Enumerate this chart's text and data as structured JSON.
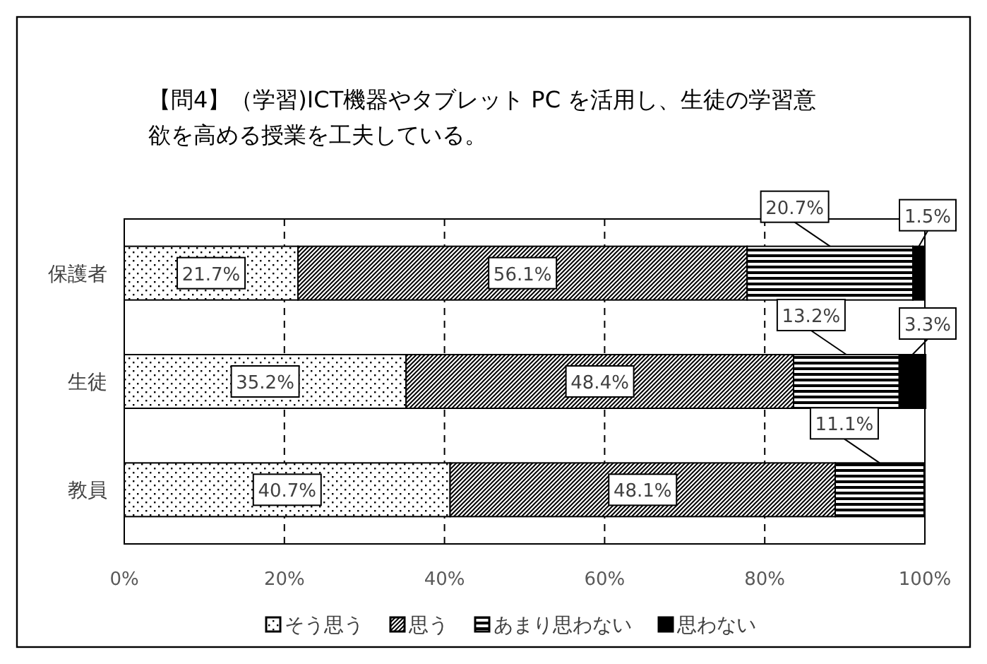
{
  "chart_data": {
    "type": "bar",
    "orientation": "horizontal",
    "stacked": true,
    "title": "【問4】（学習)ICT機器やタブレット PC を活用し、生徒の学習意欲を高める授業を工夫している。",
    "categories": [
      "保護者",
      "生徒",
      "教員"
    ],
    "series": [
      {
        "name": "そう思う",
        "color": "#000000",
        "values": [
          21.7,
          35.2,
          40.7
        ],
        "value_labels": [
          "21.7%",
          "35.2%",
          "40.7%"
        ]
      },
      {
        "name": "思う",
        "color": "#000000",
        "values": [
          56.1,
          48.4,
          48.1
        ],
        "value_labels": [
          "56.1%",
          "48.4%",
          "48.1%"
        ]
      },
      {
        "name": "あまり思わない",
        "color": "#000000",
        "values": [
          20.7,
          13.2,
          11.1
        ],
        "value_labels": [
          "20.7%",
          "13.2%",
          "11.1%"
        ]
      },
      {
        "name": "思わない",
        "color": "#000000",
        "values": [
          1.5,
          3.3,
          null
        ],
        "value_labels": [
          "1.5%",
          "3.3%",
          null
        ]
      }
    ],
    "xlim": [
      0,
      100
    ],
    "xticks": [
      {
        "value": 0,
        "label": "0%"
      },
      {
        "value": 20,
        "label": "20%"
      },
      {
        "value": 40,
        "label": "40%"
      },
      {
        "value": 60,
        "label": "60%"
      },
      {
        "value": 80,
        "label": "80%"
      },
      {
        "value": 100,
        "label": "100%"
      }
    ],
    "grid": "x",
    "legend": "bottom"
  }
}
